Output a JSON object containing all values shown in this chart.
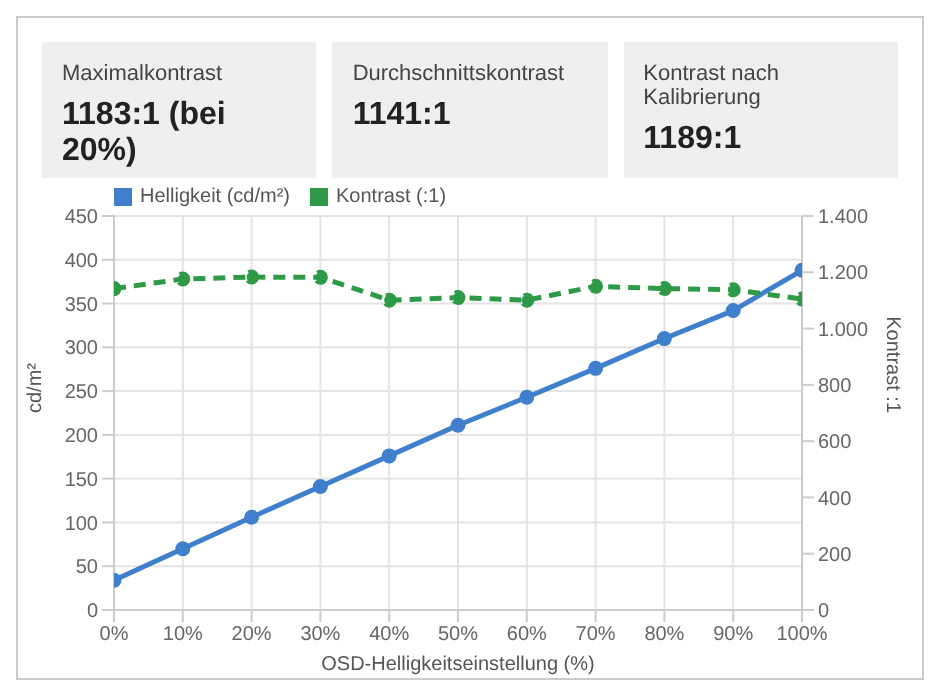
{
  "chart_data": {
    "type": "line",
    "xlabel": "OSD-Helligkeitseinstellung (%)",
    "ylabel": "cd/m²",
    "y2label": "Kontrast :1",
    "annotations": [
      "Maximalkontrast",
      "1183:1 (bei 20%)",
      "Durchschnittskontrast",
      "1141:1",
      "Kontrast nach Kalibrierung",
      "1189:1"
    ],
    "x": [
      0,
      10,
      20,
      30,
      40,
      50,
      60,
      70,
      80,
      90,
      100
    ],
    "xlim": [
      0,
      100
    ],
    "xticks": [
      {
        "value": 0,
        "label": "0%"
      },
      {
        "value": 10,
        "label": "10%"
      },
      {
        "value": 20,
        "label": "20%"
      },
      {
        "value": 30,
        "label": "30%"
      },
      {
        "value": 40,
        "label": "40%"
      },
      {
        "value": 50,
        "label": "50%"
      },
      {
        "value": 60,
        "label": "60%"
      },
      {
        "value": 70,
        "label": "70%"
      },
      {
        "value": 80,
        "label": "80%"
      },
      {
        "value": 90,
        "label": "90%"
      },
      {
        "value": 100,
        "label": "100%"
      }
    ],
    "ylim": [
      0,
      450
    ],
    "yticks": [
      0,
      50,
      100,
      150,
      200,
      250,
      300,
      350,
      400,
      450
    ],
    "y2lim": [
      0,
      1400
    ],
    "y2ticks": [
      0,
      200,
      400,
      600,
      800,
      {
        "value": 1000,
        "label": "1.000"
      },
      {
        "value": 1200,
        "label": "1.200"
      },
      {
        "value": 1400,
        "label": "1.400"
      }
    ],
    "series": [
      {
        "name": "Helligkeit (cd/m²)",
        "color": "#3f7fcb",
        "values": [
          34,
          70,
          106,
          141,
          176,
          211,
          243,
          276,
          310,
          342,
          388
        ],
        "line_style": "solid"
      },
      {
        "name": "Kontrast (:1)",
        "color": "#2e9a48",
        "axis": "y2",
        "values": [
          1142,
          1176,
          1183,
          1182,
          1101,
          1110,
          1101,
          1150,
          1142,
          1138,
          1105
        ],
        "line_style": "dashed"
      }
    ],
    "grid": true,
    "legend": "top",
    "marker": "circle"
  }
}
